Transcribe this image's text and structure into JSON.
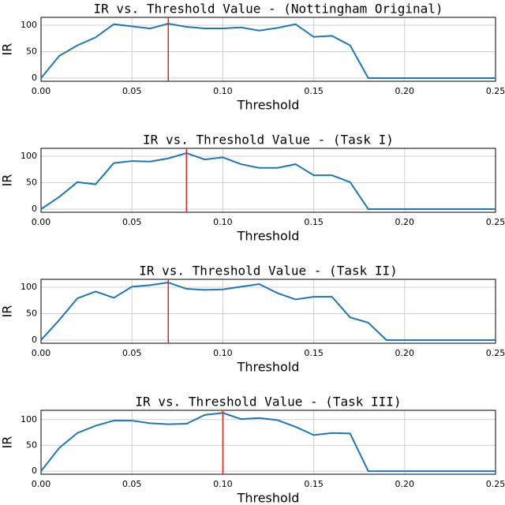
{
  "chart_data": [
    {
      "type": "line",
      "title": "IR vs. Threshold Value - (Nottingham Original)",
      "x_label": "Threshold",
      "y_label": "IR",
      "x": [
        0,
        0.01,
        0.02,
        0.03,
        0.04,
        0.05,
        0.06,
        0.07,
        0.08,
        0.09,
        0.1,
        0.11,
        0.12,
        0.13,
        0.14,
        0.15,
        0.16,
        0.17,
        0.18,
        0.19,
        0.2,
        0.21,
        0.22,
        0.23,
        0.24,
        0.25
      ],
      "values": [
        0,
        42,
        62,
        77,
        102,
        98,
        94,
        103,
        97,
        94,
        94,
        96,
        90,
        95,
        102,
        78,
        80,
        62,
        0,
        0,
        0,
        0,
        0,
        0,
        0,
        0
      ],
      "color": "#1f77b4",
      "vline": {
        "x": 0.07,
        "color": "#d62728"
      },
      "xlim": [
        0,
        0.25
      ],
      "ylim": [
        -6,
        115
      ],
      "xticks": [
        {
          "value": 0,
          "label": "0.00"
        },
        {
          "value": 0.05,
          "label": "0.05"
        },
        {
          "value": 0.1,
          "label": "0.10"
        },
        {
          "value": 0.15,
          "label": "0.15"
        },
        {
          "value": 0.2,
          "label": "0.20"
        },
        {
          "value": 0.25,
          "label": "0.25"
        }
      ],
      "yticks": [
        0,
        50,
        100
      ],
      "grid": true
    },
    {
      "type": "line",
      "title": "IR vs. Threshold Value - (Task I)",
      "x_label": "Threshold",
      "y_label": "IR",
      "x": [
        0,
        0.01,
        0.02,
        0.03,
        0.04,
        0.05,
        0.06,
        0.07,
        0.08,
        0.09,
        0.1,
        0.11,
        0.12,
        0.13,
        0.14,
        0.15,
        0.16,
        0.17,
        0.18,
        0.19,
        0.2,
        0.21,
        0.22,
        0.23,
        0.24,
        0.25
      ],
      "values": [
        0,
        23,
        51,
        47,
        87,
        91,
        90,
        96,
        106,
        94,
        98,
        85,
        78,
        78,
        85,
        64,
        64,
        51,
        0,
        0,
        0,
        0,
        0,
        0,
        0,
        0
      ],
      "color": "#1f77b4",
      "vline": {
        "x": 0.08,
        "color": "#d62728"
      },
      "xlim": [
        0,
        0.25
      ],
      "ylim": [
        -6,
        115
      ],
      "xticks": [
        {
          "value": 0,
          "label": "0.00"
        },
        {
          "value": 0.05,
          "label": "0.05"
        },
        {
          "value": 0.1,
          "label": "0.10"
        },
        {
          "value": 0.15,
          "label": "0.15"
        },
        {
          "value": 0.2,
          "label": "0.20"
        },
        {
          "value": 0.25,
          "label": "0.25"
        }
      ],
      "yticks": [
        0,
        50,
        100
      ],
      "grid": true
    },
    {
      "type": "line",
      "title": "IR vs. Threshold Value - (Task II)",
      "x_label": "Threshold",
      "y_label": "IR",
      "x": [
        0,
        0.01,
        0.02,
        0.03,
        0.04,
        0.05,
        0.06,
        0.07,
        0.08,
        0.09,
        0.1,
        0.11,
        0.12,
        0.13,
        0.14,
        0.15,
        0.16,
        0.17,
        0.18,
        0.19,
        0.2,
        0.21,
        0.22,
        0.23,
        0.24,
        0.25
      ],
      "values": [
        0,
        38,
        79,
        92,
        80,
        101,
        104,
        109,
        97,
        95,
        96,
        101,
        106,
        89,
        77,
        82,
        82,
        43,
        33,
        0,
        0,
        0,
        0,
        0,
        0,
        0
      ],
      "color": "#1f77b4",
      "vline": {
        "x": 0.07,
        "color": "#d62728"
      },
      "xlim": [
        0,
        0.25
      ],
      "ylim": [
        -6,
        115
      ],
      "xticks": [
        {
          "value": 0,
          "label": "0.00"
        },
        {
          "value": 0.05,
          "label": "0.05"
        },
        {
          "value": 0.1,
          "label": "0.10"
        },
        {
          "value": 0.15,
          "label": "0.15"
        },
        {
          "value": 0.2,
          "label": "0.20"
        },
        {
          "value": 0.25,
          "label": "0.25"
        }
      ],
      "yticks": [
        0,
        50,
        100
      ],
      "grid": true
    },
    {
      "type": "line",
      "title": "IR vs. Threshold Value - (Task III)",
      "x_label": "Threshold",
      "y_label": "IR",
      "x": [
        0,
        0.01,
        0.02,
        0.03,
        0.04,
        0.05,
        0.06,
        0.07,
        0.08,
        0.09,
        0.1,
        0.11,
        0.12,
        0.13,
        0.14,
        0.15,
        0.16,
        0.17,
        0.18,
        0.19,
        0.2,
        0.21,
        0.22,
        0.23,
        0.24,
        0.25
      ],
      "values": [
        0,
        45,
        74,
        88,
        98,
        98,
        93,
        91,
        92,
        109,
        113,
        101,
        103,
        99,
        86,
        70,
        74,
        73,
        0,
        0,
        0,
        0,
        0,
        0,
        0,
        0
      ],
      "color": "#1f77b4",
      "vline": {
        "x": 0.1,
        "color": "#d62728"
      },
      "xlim": [
        0,
        0.25
      ],
      "ylim": [
        -6,
        118
      ],
      "xticks": [
        {
          "value": 0,
          "label": "0.00"
        },
        {
          "value": 0.05,
          "label": "0.05"
        },
        {
          "value": 0.1,
          "label": "0.10"
        },
        {
          "value": 0.15,
          "label": "0.15"
        },
        {
          "value": 0.2,
          "label": "0.20"
        },
        {
          "value": 0.25,
          "label": "0.25"
        }
      ],
      "yticks": [
        0,
        50,
        100
      ],
      "grid": true
    }
  ]
}
